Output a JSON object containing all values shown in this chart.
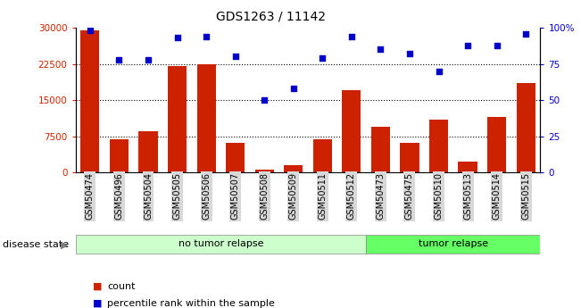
{
  "title": "GDS1263 / 11142",
  "categories": [
    "GSM50474",
    "GSM50496",
    "GSM50504",
    "GSM50505",
    "GSM50506",
    "GSM50507",
    "GSM50508",
    "GSM50509",
    "GSM50511",
    "GSM50512",
    "GSM50473",
    "GSM50475",
    "GSM50510",
    "GSM50513",
    "GSM50514",
    "GSM50515"
  ],
  "counts": [
    29500,
    6800,
    8500,
    22000,
    22500,
    6200,
    500,
    1500,
    6800,
    17000,
    9500,
    6200,
    11000,
    2200,
    11500,
    18500
  ],
  "percentiles": [
    98,
    78,
    78,
    93,
    94,
    80,
    50,
    58,
    79,
    94,
    85,
    82,
    70,
    88,
    88,
    96
  ],
  "bar_color": "#cc2200",
  "dot_color": "#0000cc",
  "ylim_left": [
    0,
    30000
  ],
  "ylim_right": [
    0,
    100
  ],
  "yticks_left": [
    0,
    7500,
    15000,
    22500,
    30000
  ],
  "yticks_right": [
    0,
    25,
    50,
    75,
    100
  ],
  "grid_values": [
    7500,
    15000,
    22500
  ],
  "no_relapse_count": 10,
  "tumor_relapse_count": 6,
  "disease_state_label": "disease state",
  "no_relapse_label": "no tumor relapse",
  "tumor_relapse_label": "tumor relapse",
  "legend_count_label": "count",
  "legend_percentile_label": "percentile rank within the sample",
  "no_relapse_color": "#ccffcc",
  "tumor_relapse_color": "#66ff66",
  "tick_bg_color": "#d8d8d8"
}
